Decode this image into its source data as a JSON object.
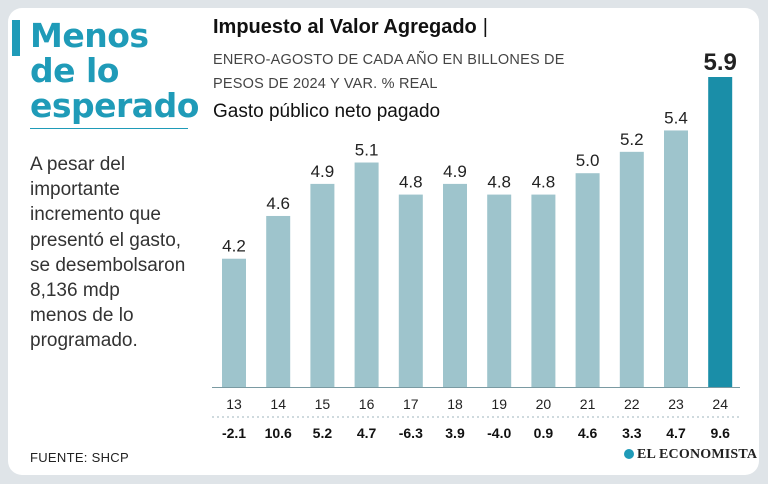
{
  "headline": [
    "Menos",
    "de lo",
    "esperado"
  ],
  "body_text": [
    "A pesar del",
    "importante",
    "incremento que",
    "presentó el gasto,",
    "se desembolsaron",
    "8,136 mdp",
    "menos de lo",
    "programado."
  ],
  "source": "FUENTE: SHCP",
  "logo": "EL ECONOMISTA",
  "colors": {
    "accent": "#1f9bb8",
    "bar": "#9ec4cc",
    "highlight_bar": "#1a8ea8"
  },
  "chart_data": {
    "type": "bar",
    "title": "Impuesto al Valor Agregado",
    "title_separator": "|",
    "subtitle": [
      "ENERO-AGOSTO DE CADA AÑO EN BILLONES DE",
      "PESOS DE 2024 Y VAR. % REAL"
    ],
    "series_name": "Gasto público neto pagado",
    "categories": [
      "13",
      "14",
      "15",
      "16",
      "17",
      "18",
      "19",
      "20",
      "21",
      "22",
      "23",
      "24"
    ],
    "values": [
      4.2,
      4.6,
      4.9,
      5.1,
      4.8,
      4.9,
      4.8,
      4.8,
      5.0,
      5.2,
      5.4,
      5.9
    ],
    "value_labels": [
      "4.2",
      "4.6",
      "4.9",
      "5.1",
      "4.8",
      "4.9",
      "4.8",
      "4.8",
      "5.0",
      "5.2",
      "5.4",
      "5.9"
    ],
    "real_change_pct": [
      "-2.1",
      "10.6",
      "5.2",
      "4.7",
      "-6.3",
      "3.9",
      "-4.0",
      "0.9",
      "4.6",
      "3.3",
      "4.7",
      "9.6"
    ],
    "highlight_category": "24",
    "ylim": [
      3.0,
      5.9
    ]
  }
}
